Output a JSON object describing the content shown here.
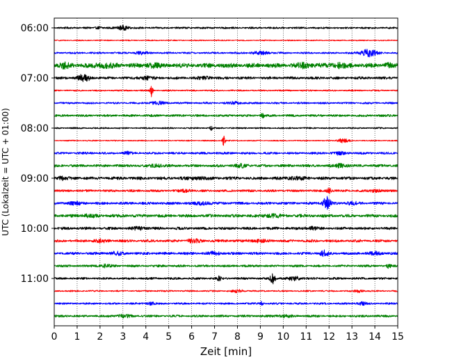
{
  "chart_data": {
    "type": "line",
    "title": "",
    "xlabel": "Zeit  [min]",
    "ylabel": "UTC (Lokalzeit = UTC + 01:00)",
    "xlim": [
      0,
      15
    ],
    "xticks": [
      0,
      1,
      2,
      3,
      4,
      5,
      6,
      7,
      8,
      9,
      10,
      11,
      12,
      13,
      14,
      15
    ],
    "xtick_labels": [
      "0",
      "1",
      "2",
      "3",
      "4",
      "5",
      "6",
      "7",
      "8",
      "9",
      "10",
      "11",
      "12",
      "13",
      "14",
      "15"
    ],
    "ytick_labels": [
      "06:00",
      "07:00",
      "08:00",
      "09:00",
      "10:00",
      "11:00"
    ],
    "ytick_trace_index": [
      0,
      4,
      8,
      12,
      16,
      20
    ],
    "grid": "vertical dotted",
    "trace_start_times": [
      "06:00",
      "06:15",
      "06:30",
      "06:45",
      "07:00",
      "07:15",
      "07:30",
      "07:45",
      "08:00",
      "08:15",
      "08:30",
      "08:45",
      "09:00",
      "09:15",
      "09:30",
      "09:45",
      "10:00",
      "10:15",
      "10:30",
      "10:45",
      "11:00",
      "11:15",
      "11:30",
      "11:45"
    ],
    "trace_colors": [
      "#000000",
      "#ff0000",
      "#0000ff",
      "#008000"
    ],
    "traces": [
      {
        "base_amp": 0.25,
        "bursts": [
          {
            "t": 2.0,
            "w": 0.15,
            "a": 0.3
          },
          {
            "t": 3.0,
            "w": 0.2,
            "a": 0.6
          }
        ]
      },
      {
        "base_amp": 0.15,
        "bursts": []
      },
      {
        "base_amp": 0.25,
        "bursts": [
          {
            "t": 3.8,
            "w": 0.3,
            "a": 0.3
          },
          {
            "t": 9.0,
            "w": 0.4,
            "a": 0.3
          },
          {
            "t": 13.7,
            "w": 0.35,
            "a": 0.9
          }
        ]
      },
      {
        "base_amp": 0.6,
        "bursts": [
          {
            "t": 0.4,
            "w": 0.25,
            "a": 0.5
          },
          {
            "t": 2.2,
            "w": 0.4,
            "a": 0.4
          },
          {
            "t": 4.3,
            "w": 0.25,
            "a": 0.4
          },
          {
            "t": 10.9,
            "w": 0.3,
            "a": 0.4
          },
          {
            "t": 12.4,
            "w": 0.3,
            "a": 0.4
          },
          {
            "t": 14.6,
            "w": 0.2,
            "a": 0.3
          }
        ]
      },
      {
        "base_amp": 0.35,
        "bursts": [
          {
            "t": 1.3,
            "w": 0.25,
            "a": 0.9
          },
          {
            "t": 4.0,
            "w": 0.3,
            "a": 0.3
          },
          {
            "t": 6.6,
            "w": 0.3,
            "a": 0.3
          }
        ]
      },
      {
        "base_amp": 0.2,
        "bursts": [
          {
            "t": 4.25,
            "w": 0.06,
            "a": 1.6
          }
        ]
      },
      {
        "base_amp": 0.25,
        "bursts": [
          {
            "t": 4.5,
            "w": 0.3,
            "a": 0.4
          },
          {
            "t": 7.9,
            "w": 0.3,
            "a": 0.3
          }
        ]
      },
      {
        "base_amp": 0.3,
        "bursts": [
          {
            "t": 9.1,
            "w": 0.1,
            "a": 0.5
          }
        ]
      },
      {
        "base_amp": 0.2,
        "bursts": [
          {
            "t": 6.85,
            "w": 0.05,
            "a": 0.6
          }
        ]
      },
      {
        "base_amp": 0.15,
        "bursts": [
          {
            "t": 7.4,
            "w": 0.06,
            "a": 1.3
          },
          {
            "t": 12.6,
            "w": 0.25,
            "a": 0.5
          }
        ]
      },
      {
        "base_amp": 0.3,
        "bursts": [
          {
            "t": 3.2,
            "w": 0.2,
            "a": 0.3
          },
          {
            "t": 12.4,
            "w": 0.3,
            "a": 0.3
          }
        ]
      },
      {
        "base_amp": 0.35,
        "bursts": [
          {
            "t": 4.5,
            "w": 0.3,
            "a": 0.3
          },
          {
            "t": 8.2,
            "w": 0.3,
            "a": 0.3
          },
          {
            "t": 12.5,
            "w": 0.3,
            "a": 0.4
          }
        ]
      },
      {
        "base_amp": 0.4,
        "bursts": [
          {
            "t": 0.3,
            "w": 0.2,
            "a": 0.4
          },
          {
            "t": 6.2,
            "w": 0.4,
            "a": 0.3
          },
          {
            "t": 10.5,
            "w": 0.4,
            "a": 0.3
          }
        ]
      },
      {
        "base_amp": 0.3,
        "bursts": [
          {
            "t": 5.8,
            "w": 0.3,
            "a": 0.3
          },
          {
            "t": 12.0,
            "w": 0.1,
            "a": 0.7
          },
          {
            "t": 14.0,
            "w": 0.2,
            "a": 0.4
          }
        ]
      },
      {
        "base_amp": 0.35,
        "bursts": [
          {
            "t": 0.9,
            "w": 0.3,
            "a": 0.3
          },
          {
            "t": 6.5,
            "w": 0.3,
            "a": 0.3
          },
          {
            "t": 11.9,
            "w": 0.15,
            "a": 1.6
          },
          {
            "t": 13.0,
            "w": 0.3,
            "a": 0.3
          }
        ]
      },
      {
        "base_amp": 0.4,
        "bursts": [
          {
            "t": 1.5,
            "w": 0.3,
            "a": 0.3
          },
          {
            "t": 9.5,
            "w": 0.4,
            "a": 0.3
          }
        ]
      },
      {
        "base_amp": 0.35,
        "bursts": [
          {
            "t": 3.7,
            "w": 0.3,
            "a": 0.3
          },
          {
            "t": 11.2,
            "w": 0.3,
            "a": 0.3
          }
        ]
      },
      {
        "base_amp": 0.35,
        "bursts": [
          {
            "t": 2.0,
            "w": 0.3,
            "a": 0.3
          },
          {
            "t": 6.1,
            "w": 0.3,
            "a": 0.4
          },
          {
            "t": 8.9,
            "w": 0.3,
            "a": 0.3
          }
        ]
      },
      {
        "base_amp": 0.35,
        "bursts": [
          {
            "t": 2.7,
            "w": 0.3,
            "a": 0.3
          },
          {
            "t": 7.0,
            "w": 0.3,
            "a": 0.3
          },
          {
            "t": 11.8,
            "w": 0.2,
            "a": 0.6
          },
          {
            "t": 14.0,
            "w": 0.3,
            "a": 0.3
          }
        ]
      },
      {
        "base_amp": 0.3,
        "bursts": [
          {
            "t": 2.2,
            "w": 0.3,
            "a": 0.3
          },
          {
            "t": 14.6,
            "w": 0.1,
            "a": 0.4
          }
        ]
      },
      {
        "base_amp": 0.3,
        "bursts": [
          {
            "t": 7.2,
            "w": 0.1,
            "a": 0.5
          },
          {
            "t": 9.55,
            "w": 0.12,
            "a": 1.2
          },
          {
            "t": 10.5,
            "w": 0.3,
            "a": 0.4
          }
        ]
      },
      {
        "base_amp": 0.2,
        "bursts": [
          {
            "t": 8.0,
            "w": 0.3,
            "a": 0.3
          },
          {
            "t": 13.3,
            "w": 0.2,
            "a": 0.3
          }
        ]
      },
      {
        "base_amp": 0.25,
        "bursts": [
          {
            "t": 4.2,
            "w": 0.2,
            "a": 0.3
          },
          {
            "t": 9.05,
            "w": 0.08,
            "a": 0.5
          },
          {
            "t": 13.4,
            "w": 0.2,
            "a": 0.4
          }
        ]
      },
      {
        "base_amp": 0.3,
        "bursts": [
          {
            "t": 3.0,
            "w": 0.3,
            "a": 0.3
          },
          {
            "t": 10.0,
            "w": 0.3,
            "a": 0.3
          }
        ]
      }
    ]
  }
}
